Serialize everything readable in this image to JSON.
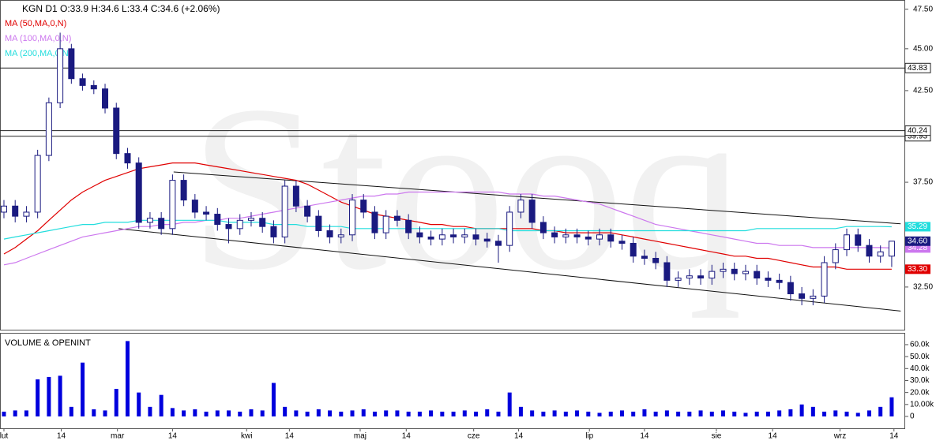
{
  "chart_data": [
    {
      "type": "candlestick",
      "title": "KGN  D1  O:33.9  H:34.6  L:33.4  C:34.6  (+2.06%)",
      "watermark": "Stooq",
      "xlim": [
        -0.35,
        80.2
      ],
      "xticks": [
        {
          "value": 0,
          "label": "lut"
        },
        {
          "value": 5.1,
          "label": "14"
        },
        {
          "value": 10.1,
          "label": "mar"
        },
        {
          "value": 15,
          "label": "14"
        },
        {
          "value": 21.6,
          "label": "kwi"
        },
        {
          "value": 25.4,
          "label": "14"
        },
        {
          "value": 31.7,
          "label": "maj"
        },
        {
          "value": 35.8,
          "label": "14"
        },
        {
          "value": 41.8,
          "label": "cze"
        },
        {
          "value": 45.8,
          "label": "14"
        },
        {
          "value": 52.1,
          "label": "lip"
        },
        {
          "value": 57,
          "label": "14"
        },
        {
          "value": 63.4,
          "label": "sie"
        },
        {
          "value": 68.4,
          "label": "14"
        },
        {
          "value": 74.4,
          "label": "wrz"
        },
        {
          "value": 79.2,
          "label": "14"
        }
      ],
      "open": [
        36.0,
        36.3,
        35.8,
        36.0,
        38.9,
        41.8,
        45.0,
        43.2,
        42.8,
        42.6,
        41.5,
        39.0,
        38.5,
        35.5,
        35.7,
        35.2,
        37.6,
        36.6,
        36.0,
        35.9,
        35.4,
        35.2,
        35.6,
        35.7,
        35.3,
        34.8,
        37.3,
        36.3,
        35.8,
        35.1,
        34.8,
        34.9,
        36.6,
        36.0,
        35.0,
        35.8,
        35.6,
        35.0,
        34.8,
        34.7,
        34.9,
        34.8,
        34.9,
        34.7,
        34.6,
        34.4,
        36.0,
        36.6,
        35.5,
        35.0,
        34.8,
        34.9,
        34.8,
        34.7,
        34.9,
        34.6,
        34.5,
        33.9,
        33.8,
        33.6,
        32.8,
        32.9,
        33.0,
        32.9,
        33.2,
        33.3,
        33.1,
        33.2,
        32.9,
        32.8,
        32.7,
        32.2,
        32.0,
        32.1,
        33.6,
        34.2,
        34.9,
        34.4,
        33.9,
        33.9
      ],
      "high": [
        36.6,
        36.6,
        36.3,
        39.2,
        42.1,
        46.0,
        45.3,
        43.5,
        43.1,
        42.9,
        41.8,
        39.3,
        38.8,
        36.0,
        36.0,
        37.9,
        37.9,
        36.9,
        36.3,
        36.2,
        35.7,
        35.9,
        36.0,
        36.0,
        35.6,
        37.6,
        37.6,
        36.6,
        36.1,
        35.4,
        35.2,
        36.9,
        36.9,
        36.3,
        36.1,
        36.1,
        35.9,
        35.3,
        35.1,
        35.2,
        35.2,
        35.2,
        35.2,
        35.0,
        34.9,
        36.3,
        36.9,
        36.9,
        35.8,
        35.3,
        35.2,
        35.2,
        35.1,
        35.2,
        35.2,
        34.9,
        34.8,
        34.2,
        34.1,
        33.9,
        33.2,
        33.3,
        33.3,
        33.5,
        33.6,
        33.6,
        33.5,
        33.5,
        33.2,
        33.1,
        33.0,
        32.5,
        32.4,
        33.9,
        34.5,
        35.2,
        35.2,
        34.7,
        34.4,
        34.6
      ],
      "low": [
        35.7,
        35.5,
        35.5,
        35.7,
        38.6,
        41.5,
        42.9,
        42.5,
        42.3,
        41.2,
        38.7,
        38.2,
        35.2,
        35.2,
        34.9,
        34.9,
        36.3,
        35.7,
        35.6,
        35.1,
        34.5,
        34.9,
        35.3,
        35.0,
        34.5,
        34.5,
        36.0,
        35.5,
        34.8,
        34.5,
        34.5,
        34.6,
        35.7,
        34.7,
        34.7,
        35.3,
        34.7,
        34.5,
        34.4,
        34.4,
        34.5,
        34.5,
        34.4,
        34.3,
        33.6,
        34.1,
        35.7,
        35.2,
        34.7,
        34.5,
        34.5,
        34.5,
        34.4,
        34.4,
        34.3,
        34.2,
        33.6,
        33.5,
        33.3,
        32.5,
        32.5,
        32.6,
        32.6,
        32.6,
        32.9,
        32.8,
        32.8,
        32.6,
        32.5,
        32.4,
        31.9,
        31.7,
        31.7,
        31.8,
        33.3,
        33.9,
        34.1,
        33.6,
        33.6,
        33.4
      ],
      "close": [
        36.3,
        35.8,
        36.0,
        38.9,
        41.8,
        45.0,
        43.2,
        42.8,
        42.6,
        41.5,
        39.0,
        38.5,
        35.5,
        35.7,
        35.2,
        37.6,
        36.6,
        36.0,
        35.9,
        35.4,
        35.2,
        35.6,
        35.7,
        35.3,
        34.8,
        37.3,
        36.3,
        35.8,
        35.1,
        34.8,
        34.9,
        36.6,
        36.0,
        35.0,
        35.8,
        35.6,
        35.0,
        34.8,
        34.7,
        34.9,
        34.8,
        34.9,
        34.7,
        34.6,
        34.4,
        36.0,
        36.6,
        35.5,
        35.0,
        34.8,
        34.9,
        34.8,
        34.7,
        34.9,
        34.6,
        34.5,
        33.9,
        33.8,
        33.6,
        32.8,
        32.9,
        33.0,
        32.9,
        33.2,
        33.3,
        33.1,
        33.2,
        32.9,
        32.8,
        32.7,
        32.2,
        32.0,
        32.1,
        33.6,
        34.2,
        34.9,
        34.4,
        33.9,
        34.1,
        34.6
      ],
      "close_label": "34.60",
      "up_color": "#ffffff",
      "down_color": "#1a1a80",
      "edge_color": "#1a1a80",
      "log_scale": true,
      "ylim": [
        30.66,
        48.1
      ],
      "yticks": [
        {
          "value": 32.5,
          "label": "32.50"
        },
        {
          "value": 37.5,
          "label": "37.50"
        },
        {
          "value": 42.5,
          "label": "42.50"
        },
        {
          "value": 45,
          "label": "45.00"
        },
        {
          "value": 47.5,
          "label": "47.50"
        }
      ],
      "series": [
        {
          "name": "MA (50,MA,0,N)",
          "color": "#e00000",
          "last_label": "33.30",
          "values": [
            34.0,
            34.3,
            34.7,
            35.1,
            35.6,
            36.1,
            36.6,
            37.0,
            37.3,
            37.6,
            37.8,
            38.0,
            38.2,
            38.3,
            38.4,
            38.5,
            38.5,
            38.5,
            38.4,
            38.3,
            38.2,
            38.1,
            38.0,
            37.9,
            37.8,
            37.7,
            37.6,
            37.4,
            37.1,
            36.8,
            36.5,
            36.3,
            36.1,
            35.9,
            35.8,
            35.7,
            35.6,
            35.5,
            35.4,
            35.4,
            35.3,
            35.3,
            35.2,
            35.2,
            35.2,
            35.2,
            35.2,
            35.2,
            35.1,
            35.1,
            35.0,
            35.0,
            35.0,
            35.0,
            35.0,
            34.9,
            34.8,
            34.7,
            34.6,
            34.5,
            34.4,
            34.3,
            34.2,
            34.1,
            34.0,
            33.9,
            33.9,
            33.8,
            33.8,
            33.7,
            33.6,
            33.5,
            33.4,
            33.4,
            33.4,
            33.3,
            33.3,
            33.3,
            33.3,
            33.3
          ]
        },
        {
          "name": "MA (100,MA,0,N)",
          "color": "#cc77ee",
          "last_label": "34.28",
          "values": [
            33.5,
            33.6,
            33.8,
            34.0,
            34.2,
            34.4,
            34.6,
            34.8,
            34.9,
            35.0,
            35.1,
            35.2,
            35.3,
            35.3,
            35.4,
            35.4,
            35.5,
            35.5,
            35.6,
            35.6,
            35.7,
            35.7,
            35.8,
            35.9,
            36.0,
            36.1,
            36.2,
            36.3,
            36.4,
            36.5,
            36.6,
            36.7,
            36.8,
            36.8,
            36.9,
            36.9,
            37.0,
            37.0,
            37.0,
            37.0,
            37.0,
            37.0,
            37.0,
            37.0,
            37.0,
            36.9,
            36.9,
            36.9,
            36.8,
            36.8,
            36.7,
            36.6,
            36.5,
            36.4,
            36.2,
            36.0,
            35.8,
            35.6,
            35.4,
            35.3,
            35.2,
            35.1,
            35.0,
            34.9,
            34.8,
            34.7,
            34.6,
            34.5,
            34.5,
            34.4,
            34.4,
            34.4,
            34.3,
            34.3,
            34.3,
            34.3,
            34.3,
            34.3,
            34.3,
            34.28
          ]
        },
        {
          "name": "MA (200,MA,0,N)",
          "color": "#22dddd",
          "last_label": "35.29",
          "values": [
            34.7,
            34.8,
            34.9,
            35.0,
            35.1,
            35.2,
            35.3,
            35.4,
            35.4,
            35.5,
            35.5,
            35.5,
            35.6,
            35.6,
            35.6,
            35.6,
            35.6,
            35.6,
            35.6,
            35.6,
            35.5,
            35.5,
            35.5,
            35.5,
            35.4,
            35.4,
            35.4,
            35.3,
            35.3,
            35.3,
            35.3,
            35.2,
            35.2,
            35.2,
            35.2,
            35.2,
            35.2,
            35.2,
            35.2,
            35.2,
            35.2,
            35.2,
            35.2,
            35.2,
            35.2,
            35.1,
            35.1,
            35.1,
            35.1,
            35.1,
            35.1,
            35.1,
            35.1,
            35.1,
            35.1,
            35.1,
            35.1,
            35.1,
            35.1,
            35.1,
            35.1,
            35.1,
            35.1,
            35.1,
            35.1,
            35.1,
            35.1,
            35.2,
            35.2,
            35.2,
            35.2,
            35.2,
            35.2,
            35.2,
            35.2,
            35.3,
            35.3,
            35.3,
            35.3,
            35.29
          ]
        }
      ],
      "levels": [
        {
          "value": 43.83,
          "label": "43.83"
        },
        {
          "value": 39.93,
          "label": "39.93"
        },
        {
          "value": 40.24,
          "label": "40.24"
        }
      ],
      "trendlines": [
        {
          "x": [
            15.1,
            79.8
          ],
          "y": [
            38.03,
            35.43
          ]
        },
        {
          "x": [
            10.2,
            79.8
          ],
          "y": [
            35.2,
            31.45
          ]
        }
      ]
    },
    {
      "type": "bar",
      "title": "VOLUME & OPENINT",
      "color": "#0000dd",
      "values": [
        4000,
        5000,
        5000,
        31000,
        33000,
        34000,
        8000,
        45000,
        6000,
        5000,
        23000,
        63000,
        20000,
        8000,
        18000,
        7000,
        5000,
        6000,
        4000,
        5000,
        5000,
        4000,
        6000,
        5000,
        28000,
        8000,
        5000,
        4000,
        6000,
        5000,
        4000,
        5000,
        6000,
        4000,
        5000,
        5000,
        4000,
        4000,
        5000,
        4000,
        4000,
        5000,
        4000,
        6000,
        4000,
        20000,
        8000,
        5000,
        4000,
        5000,
        4000,
        5000,
        4000,
        3000,
        4000,
        5000,
        4000,
        6000,
        4000,
        5000,
        4000,
        4000,
        5000,
        4000,
        5000,
        4000,
        3000,
        4000,
        4000,
        5000,
        6000,
        10000,
        8000,
        4000,
        5000,
        4000,
        3000,
        5000,
        8000,
        16000
      ],
      "ylim": [
        -9900,
        69200
      ],
      "yticks": [
        0,
        {
          "value": 10000,
          "label": "10.00k"
        },
        {
          "value": 20000,
          "label": "20.0k"
        },
        {
          "value": 30000,
          "label": "30.0k"
        },
        {
          "value": 40000,
          "label": "40.0k"
        },
        {
          "value": 50000,
          "label": "50.0k"
        },
        {
          "value": 60000,
          "label": "60.0k"
        }
      ]
    }
  ]
}
